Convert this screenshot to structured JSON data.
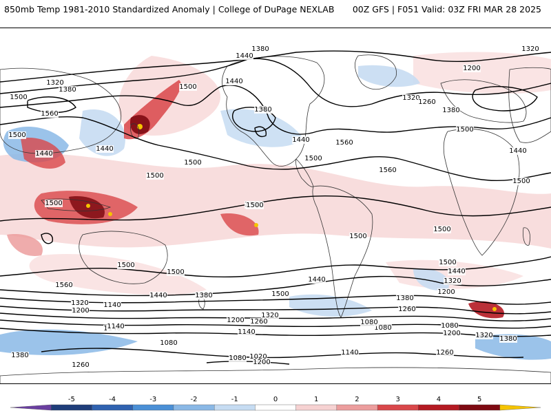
{
  "header": {
    "left_title": "850mb Temp 1981-2010 Standardized Anomaly | College of DuPage NEXLAB",
    "right_title": "00Z GFS | F051 Valid: 03Z FRI MAR 28 2025"
  },
  "colorbar": {
    "ticks": [
      "-5",
      "-4",
      "-3",
      "-2",
      "-1",
      "0",
      "1",
      "2",
      "3",
      "4",
      "5"
    ],
    "colors": [
      "#6a3fa0",
      "#1f3d7a",
      "#2f62b0",
      "#4a8fd6",
      "#8ab8e6",
      "#c6dcf2",
      "#ffffff",
      "#f6d2d2",
      "#ec9d9d",
      "#d9474a",
      "#b41a22",
      "#7e0a12",
      "#f5c400"
    ]
  },
  "contours": {
    "labels": [
      {
        "text": "1380"
      },
      {
        "text": "1320"
      },
      {
        "text": "1440"
      },
      {
        "text": "1320"
      },
      {
        "text": "1380"
      },
      {
        "text": "1500"
      },
      {
        "text": "1440"
      },
      {
        "text": "1200"
      },
      {
        "text": "1500"
      },
      {
        "text": "1560"
      },
      {
        "text": "1380"
      },
      {
        "text": "1440"
      },
      {
        "text": "1320"
      },
      {
        "text": "1260"
      },
      {
        "text": "1380"
      },
      {
        "text": "1500"
      },
      {
        "text": "1440"
      },
      {
        "text": "1500"
      },
      {
        "text": "1560"
      },
      {
        "text": "1440"
      },
      {
        "text": "1560"
      },
      {
        "text": "1500"
      },
      {
        "text": "1500"
      },
      {
        "text": "1500"
      },
      {
        "text": "1440"
      },
      {
        "text": "1500"
      },
      {
        "text": "1500"
      },
      {
        "text": "1500"
      },
      {
        "text": "1500"
      },
      {
        "text": "1500"
      },
      {
        "text": "1500"
      },
      {
        "text": "1500"
      },
      {
        "text": "1500"
      },
      {
        "text": "1500"
      },
      {
        "text": "1440"
      },
      {
        "text": "1560"
      },
      {
        "text": "1440"
      },
      {
        "text": "1380"
      },
      {
        "text": "1500"
      },
      {
        "text": "1440"
      },
      {
        "text": "1320"
      },
      {
        "text": "1200"
      },
      {
        "text": "1380"
      },
      {
        "text": "1260"
      },
      {
        "text": "1260"
      },
      {
        "text": "1320"
      },
      {
        "text": "1140"
      },
      {
        "text": "1200"
      },
      {
        "text": "1320"
      },
      {
        "text": "1200"
      },
      {
        "text": "1260"
      },
      {
        "text": "1140"
      },
      {
        "text": "1080"
      },
      {
        "text": "1080"
      },
      {
        "text": "1200"
      },
      {
        "text": "1140"
      },
      {
        "text": "1080"
      },
      {
        "text": "1320"
      },
      {
        "text": "1380"
      },
      {
        "text": "1380"
      },
      {
        "text": "1080"
      },
      {
        "text": "1140"
      },
      {
        "text": "1080"
      },
      {
        "text": "1020"
      },
      {
        "text": "1200"
      },
      {
        "text": "1140"
      },
      {
        "text": "1260"
      },
      {
        "text": "1260"
      }
    ]
  }
}
